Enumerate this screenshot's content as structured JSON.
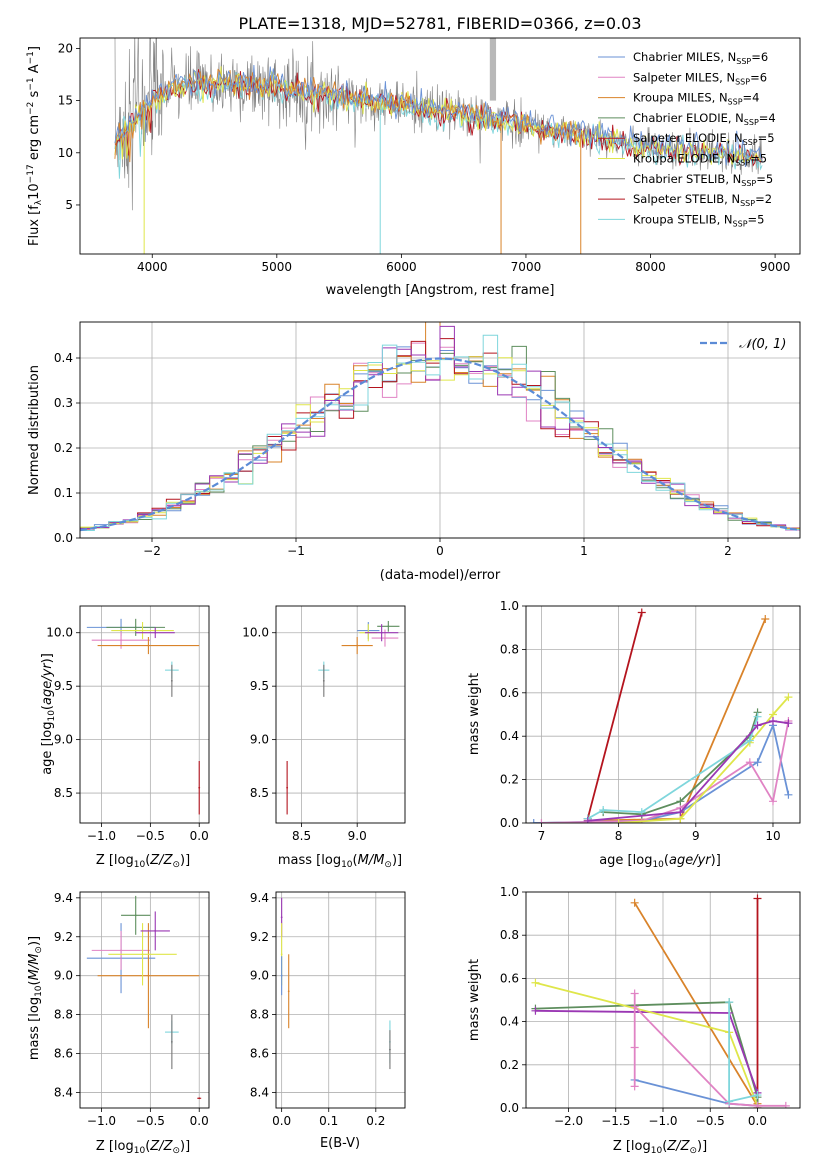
{
  "colors": {
    "Chabrier MILES": "#6a92d6",
    "Salpeter MILES": "#e083c4",
    "Kroupa MILES": "#d9832a",
    "Chabrier ELODIE": "#5e8e5e",
    "Salpeter ELODIE": "#b4141e",
    "Kroupa ELODIE": "#dfe64a",
    "Chabrier STELIB": "#777777",
    "Salpeter STELIB": "#b4141e",
    "Kroupa STELIB": "#7fd6dc",
    "extra_purple": "#9a37b3",
    "normal": "#5b8bd6"
  },
  "chart_data": [
    {
      "id": "spectrum",
      "type": "line",
      "title": "PLATE=1318, MJD=52781, FIBERID=0366, z=0.03",
      "xlabel": "wavelength [Angstrom, rest frame]",
      "ylabel": "Flux [f",
      "xlim": [
        3420,
        9200
      ],
      "ylim": [
        0.3,
        21
      ],
      "xticks": [
        4000,
        5000,
        6000,
        7000,
        8000,
        9000
      ],
      "yticks": [
        5,
        10,
        15,
        20
      ],
      "legend": [
        {
          "name": "Chabrier MILES",
          "nssp": "6"
        },
        {
          "name": "Salpeter MILES",
          "nssp": "6"
        },
        {
          "name": "Kroupa MILES",
          "nssp": "4"
        },
        {
          "name": "Chabrier ELODIE",
          "nssp": "4"
        },
        {
          "name": "Salpeter ELODIE",
          "nssp": "5"
        },
        {
          "name": "Kroupa ELODIE",
          "nssp": "5"
        },
        {
          "name": "Chabrier STELIB",
          "nssp": "5"
        },
        {
          "name": "Salpeter STELIB",
          "nssp": "2"
        },
        {
          "name": "Kroupa STELIB",
          "nssp": "5"
        }
      ],
      "continuum": [
        [
          3700,
          11
        ],
        [
          3800,
          12.5
        ],
        [
          3950,
          14.5
        ],
        [
          4100,
          16
        ],
        [
          4300,
          16.5
        ],
        [
          4600,
          16.6
        ],
        [
          5000,
          16.3
        ],
        [
          5500,
          15.4
        ],
        [
          6000,
          14.6
        ],
        [
          6500,
          13.7
        ],
        [
          7000,
          12.7
        ],
        [
          7500,
          11.6
        ],
        [
          8000,
          10.6
        ],
        [
          8500,
          10
        ],
        [
          8900,
          9.6
        ]
      ]
    },
    {
      "id": "residuals",
      "type": "histogram",
      "xlabel": "(data-model)/error",
      "ylabel": "Normed distribution",
      "xlim": [
        -2.5,
        2.5
      ],
      "ylim": [
        0,
        0.48
      ],
      "xticks": [
        -2,
        -1,
        0,
        1,
        2
      ],
      "yticks": [
        0.0,
        0.1,
        0.2,
        0.3,
        0.4
      ],
      "legend": [
        {
          "name": "𝒩(0, 1)"
        }
      ]
    },
    {
      "id": "age_vs_Z",
      "type": "scatter",
      "xlabel": "Z [log",
      "ylabel": "age  [log",
      "xlim": [
        -1.22,
        0.1
      ],
      "ylim": [
        8.22,
        10.25
      ],
      "xticks": [
        -1.0,
        -0.5,
        0.0
      ],
      "yticks": [
        8.5,
        9.0,
        9.5,
        10.0
      ],
      "points": [
        {
          "model": "Chabrier MILES",
          "x": -0.8,
          "y": 10.05,
          "xerr": 0.35,
          "yerr": 0.08
        },
        {
          "model": "Salpeter MILES",
          "x": -0.8,
          "y": 9.93,
          "xerr": 0.3,
          "yerr": 0.08
        },
        {
          "model": "Kroupa MILES",
          "x": -0.52,
          "y": 9.88,
          "xerr": 0.52,
          "yerr": 0.08
        },
        {
          "model": "Chabrier ELODIE",
          "x": -0.65,
          "y": 10.05,
          "xerr": 0.3,
          "yerr": 0.08
        },
        {
          "model": "Kroupa ELODIE",
          "x": -0.58,
          "y": 10.02,
          "xerr": 0.32,
          "yerr": 0.08
        },
        {
          "model": "Kroupa STELIB",
          "x": -0.28,
          "y": 9.65,
          "xerr": 0.07,
          "yerr": 0.08
        },
        {
          "model": "Chabrier STELIB",
          "x": -0.28,
          "y": 9.55,
          "xerr": 0.0,
          "yerr": 0.15
        },
        {
          "model": "Salpeter STELIB",
          "x": 0.0,
          "y": 8.55,
          "xerr": 0.0,
          "yerr": 0.25
        },
        {
          "model": "extra_purple",
          "x": -0.45,
          "y": 10.0,
          "xerr": 0.2,
          "yerr": 0.05
        }
      ]
    },
    {
      "id": "age_vs_mass",
      "type": "scatter",
      "xlabel": "mass [log",
      "ylabel": "",
      "xlim": [
        8.27,
        9.43
      ],
      "ylim": [
        8.22,
        10.25
      ],
      "xticks": [
        8.5,
        9.0
      ],
      "yticks": [
        8.5,
        9.0,
        9.5,
        10.0
      ],
      "points": [
        {
          "model": "Chabrier MILES",
          "x": 9.1,
          "y": 10.02,
          "xerr": 0.1,
          "yerr": 0.08
        },
        {
          "model": "Salpeter MILES",
          "x": 9.25,
          "y": 9.95,
          "xerr": 0.12,
          "yerr": 0.08
        },
        {
          "model": "Kroupa MILES",
          "x": 9.0,
          "y": 9.88,
          "xerr": 0.14,
          "yerr": 0.08
        },
        {
          "model": "Chabrier ELODIE",
          "x": 9.28,
          "y": 10.06,
          "xerr": 0.1,
          "yerr": 0.05
        },
        {
          "model": "Kroupa ELODIE",
          "x": 9.1,
          "y": 10.0,
          "xerr": 0.08,
          "yerr": 0.08
        },
        {
          "model": "Kroupa STELIB",
          "x": 8.7,
          "y": 9.65,
          "xerr": 0.05,
          "yerr": 0.08
        },
        {
          "model": "Chabrier STELIB",
          "x": 8.7,
          "y": 9.55,
          "xerr": 0.0,
          "yerr": 0.15
        },
        {
          "model": "Salpeter STELIB",
          "x": 8.37,
          "y": 8.55,
          "xerr": 0.0,
          "yerr": 0.25
        },
        {
          "model": "extra_purple",
          "x": 9.22,
          "y": 10.0,
          "xerr": 0.15,
          "yerr": 0.08
        }
      ]
    },
    {
      "id": "massweight_vs_age",
      "type": "line",
      "xlabel": "age  [log",
      "ylabel": "mass weight",
      "xlim": [
        6.8,
        10.35
      ],
      "ylim": [
        0,
        1.0
      ],
      "xticks": [
        7,
        8,
        9,
        10
      ],
      "yticks": [
        0.0,
        0.2,
        0.4,
        0.6,
        0.8,
        1.0
      ],
      "series": [
        {
          "model": "Salpeter STELIB",
          "x": [
            7.6,
            8.3
          ],
          "y": [
            0.02,
            0.97
          ]
        },
        {
          "model": "Kroupa MILES",
          "x": [
            7.6,
            8.8,
            9.9
          ],
          "y": [
            0.01,
            0.02,
            0.94
          ]
        },
        {
          "model": "Chabrier MILES",
          "x": [
            6.9,
            8.3,
            8.8,
            9.8,
            10.0,
            10.2
          ],
          "y": [
            0.0,
            0.01,
            0.05,
            0.28,
            0.45,
            0.13
          ]
        },
        {
          "model": "Salpeter MILES",
          "x": [
            7.0,
            8.3,
            8.8,
            9.7,
            10.0,
            10.2
          ],
          "y": [
            0.0,
            0.01,
            0.07,
            0.28,
            0.1,
            0.47
          ]
        },
        {
          "model": "Kroupa ELODIE",
          "x": [
            8.0,
            8.8,
            9.7,
            10.0,
            10.2
          ],
          "y": [
            0.0,
            0.02,
            0.37,
            0.5,
            0.58
          ]
        },
        {
          "model": "Chabrier ELODIE",
          "x": [
            7.8,
            8.3,
            8.8,
            9.7,
            9.8
          ],
          "y": [
            0.05,
            0.04,
            0.1,
            0.4,
            0.51
          ]
        },
        {
          "model": "Kroupa STELIB",
          "x": [
            7.6,
            7.8,
            8.3,
            9.7,
            9.8
          ],
          "y": [
            0.02,
            0.06,
            0.05,
            0.38,
            0.49
          ]
        },
        {
          "model": "extra_purple",
          "x": [
            7.6,
            8.8,
            9.8,
            10.0,
            10.2
          ],
          "y": [
            0.01,
            0.05,
            0.45,
            0.47,
            0.46
          ]
        }
      ]
    },
    {
      "id": "mass_vs_Z",
      "type": "scatter",
      "xlabel": "Z [log",
      "ylabel": "mass [log",
      "xlim": [
        -1.22,
        0.1
      ],
      "ylim": [
        8.32,
        9.43
      ],
      "xticks": [
        -1.0,
        -0.5,
        0.0
      ],
      "yticks": [
        8.4,
        8.6,
        8.8,
        9.0,
        9.2,
        9.4
      ],
      "points": [
        {
          "model": "Chabrier MILES",
          "x": -0.8,
          "y": 9.09,
          "xerr": 0.35,
          "yerr": 0.18
        },
        {
          "model": "Salpeter MILES",
          "x": -0.8,
          "y": 9.13,
          "xerr": 0.3,
          "yerr": 0.1
        },
        {
          "model": "Kroupa MILES",
          "x": -0.52,
          "y": 9.0,
          "xerr": 0.52,
          "yerr": 0.27
        },
        {
          "model": "Chabrier ELODIE",
          "x": -0.65,
          "y": 9.31,
          "xerr": 0.15,
          "yerr": 0.1
        },
        {
          "model": "Kroupa ELODIE",
          "x": -0.58,
          "y": 9.11,
          "xerr": 0.35,
          "yerr": 0.16
        },
        {
          "model": "Kroupa STELIB",
          "x": -0.28,
          "y": 8.71,
          "xerr": 0.07,
          "yerr": 0.06
        },
        {
          "model": "Chabrier STELIB",
          "x": -0.28,
          "y": 8.66,
          "xerr": 0.0,
          "yerr": 0.14
        },
        {
          "model": "Salpeter STELIB",
          "x": 0.0,
          "y": 8.37,
          "xerr": 0.02,
          "yerr": 0.0
        },
        {
          "model": "extra_purple",
          "x": -0.45,
          "y": 9.23,
          "xerr": 0.15,
          "yerr": 0.1
        }
      ]
    },
    {
      "id": "mass_vs_ebv",
      "type": "scatter",
      "xlabel": "E(B-V)",
      "ylabel": "",
      "xlim": [
        -0.012,
        0.262
      ],
      "ylim": [
        8.32,
        9.43
      ],
      "xticks": [
        0.0,
        0.1,
        0.2
      ],
      "yticks": [
        8.4,
        8.6,
        8.8,
        9.0,
        9.2,
        9.4
      ],
      "points": [
        {
          "model": "extra_purple",
          "x": 0.0,
          "y": 9.3,
          "xerr": 0.0,
          "yerr": 0.1
        },
        {
          "model": "Kroupa ELODIE",
          "x": 0.0,
          "y": 9.11,
          "xerr": 0.0,
          "yerr": 0.16
        },
        {
          "model": "Chabrier MILES",
          "x": 0.0,
          "y": 9.0,
          "xerr": 0.0,
          "yerr": 0.1
        },
        {
          "model": "Kroupa MILES",
          "x": 0.015,
          "y": 8.92,
          "xerr": 0.0,
          "yerr": 0.19
        },
        {
          "model": "Kroupa STELIB",
          "x": 0.23,
          "y": 8.66,
          "xerr": 0.0,
          "yerr": 0.11
        },
        {
          "model": "Chabrier STELIB",
          "x": 0.23,
          "y": 8.62,
          "xerr": 0.0,
          "yerr": 0.1
        }
      ]
    },
    {
      "id": "massweight_vs_Z",
      "type": "line",
      "xlabel": "Z [log",
      "ylabel": "mass weight",
      "xlim": [
        -2.45,
        0.45
      ],
      "ylim": [
        0,
        1.0
      ],
      "xticks": [
        -2.0,
        -1.5,
        -1.0,
        -0.5,
        0.0
      ],
      "yticks": [
        0.0,
        0.2,
        0.4,
        0.6,
        0.8,
        1.0
      ],
      "series": [
        {
          "model": "Salpeter STELIB",
          "x": [
            0.0,
            0.0
          ],
          "y": [
            0.0,
            0.97
          ]
        },
        {
          "model": "Kroupa MILES",
          "x": [
            -1.3,
            0.0,
            0.0
          ],
          "y": [
            0.95,
            0.01,
            0.02
          ]
        },
        {
          "model": "Chabrier ELODIE",
          "x": [
            -2.35,
            -0.3,
            0.0,
            0.0
          ],
          "y": [
            0.46,
            0.49,
            0.05,
            0.01
          ]
        },
        {
          "model": "extra_purple",
          "x": [
            -2.35,
            -0.3,
            0.0
          ],
          "y": [
            0.45,
            0.44,
            0.07
          ]
        },
        {
          "model": "Kroupa ELODIE",
          "x": [
            -2.35,
            -0.3,
            0.0
          ],
          "y": [
            0.58,
            0.35,
            0.01
          ]
        },
        {
          "model": "Chabrier MILES",
          "x": [
            -1.3,
            -0.3,
            0.0
          ],
          "y": [
            0.13,
            0.02,
            0.01
          ]
        },
        {
          "model": "Salpeter MILES",
          "x": [
            -1.3,
            -1.3,
            -1.3,
            -1.3,
            -0.3,
            0.0,
            0.3
          ],
          "y": [
            0.53,
            0.28,
            0.1,
            0.47,
            0.02,
            0.01,
            0.01
          ]
        },
        {
          "model": "Kroupa STELIB",
          "x": [
            -0.3,
            -0.3,
            0.0
          ],
          "y": [
            0.49,
            0.03,
            0.06
          ]
        }
      ]
    }
  ]
}
